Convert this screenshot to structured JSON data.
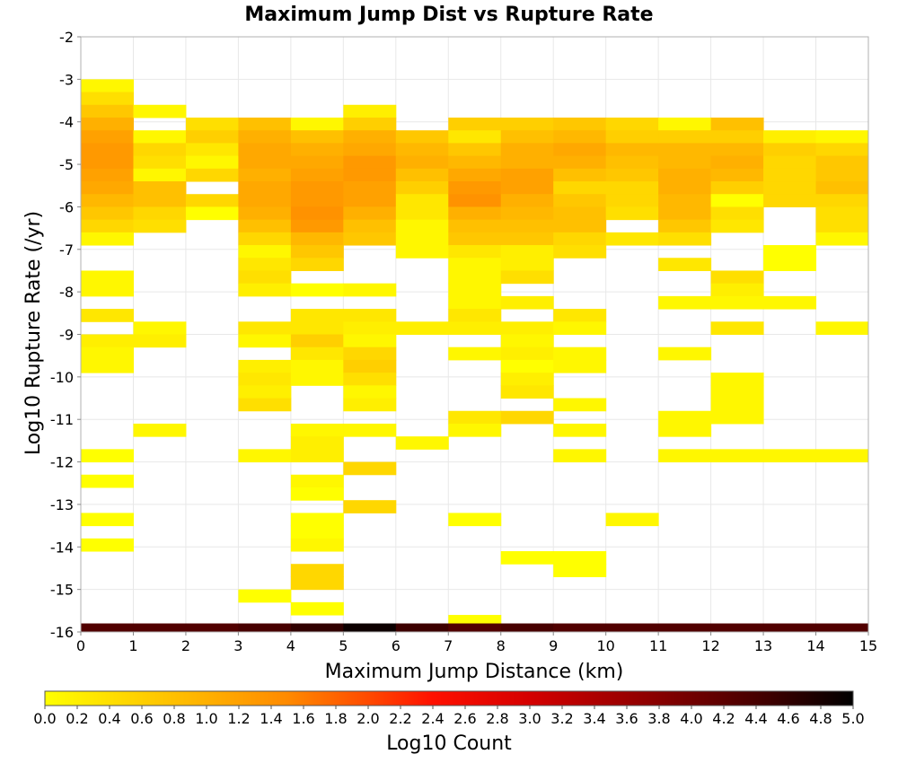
{
  "chart_data": {
    "type": "heatmap",
    "title": "Maximum Jump Dist vs Rupture Rate",
    "xlabel": "Maximum Jump Distance (km)",
    "ylabel": "Log10 Rupture Rate (/yr)",
    "xlim": [
      0,
      15
    ],
    "ylim": [
      -16,
      -2
    ],
    "x_ticks": [
      "0",
      "1",
      "2",
      "3",
      "4",
      "5",
      "6",
      "7",
      "8",
      "9",
      "10",
      "11",
      "12",
      "13",
      "14",
      "15"
    ],
    "y_ticks": [
      "-2",
      "-3",
      "-4",
      "-5",
      "-6",
      "-7",
      "-8",
      "-9",
      "-10",
      "-11",
      "-12",
      "-13",
      "-14",
      "-15",
      "-16"
    ],
    "bin_width_x": 1,
    "bin_height_y": 0.3,
    "grid": true,
    "colorbar": {
      "label": "Log10 Count",
      "min": 0.0,
      "max": 5.0,
      "ticks": [
        "0.0",
        "0.2",
        "0.4",
        "0.6",
        "0.8",
        "1.0",
        "1.2",
        "1.4",
        "1.6",
        "1.8",
        "2.0",
        "2.2",
        "2.4",
        "2.6",
        "2.8",
        "3.0",
        "3.2",
        "3.4",
        "3.6",
        "3.8",
        "4.0",
        "4.2",
        "4.4",
        "4.6",
        "4.8",
        "5.0"
      ],
      "placement": "bottom"
    },
    "cells": [
      [
        0,
        -3.15,
        0.1
      ],
      [
        0,
        -3.45,
        0.4
      ],
      [
        0,
        -3.75,
        0.7
      ],
      [
        0,
        -4.05,
        1.0
      ],
      [
        0,
        -4.35,
        1.2
      ],
      [
        0,
        -4.65,
        1.3
      ],
      [
        0,
        -4.95,
        1.3
      ],
      [
        0,
        -5.25,
        1.2
      ],
      [
        0,
        -5.55,
        1.1
      ],
      [
        0,
        -5.85,
        0.9
      ],
      [
        0,
        -6.15,
        0.7
      ],
      [
        0,
        -6.45,
        0.5
      ],
      [
        0,
        -6.75,
        0.1
      ],
      [
        0,
        -7.65,
        0.1
      ],
      [
        0,
        -7.95,
        0.1
      ],
      [
        0,
        -8.55,
        0.3
      ],
      [
        0,
        -9.15,
        0.2
      ],
      [
        0,
        -9.45,
        0.1
      ],
      [
        0,
        -9.75,
        0.1
      ],
      [
        0,
        -11.85,
        0.0
      ],
      [
        0,
        -12.45,
        0.0
      ],
      [
        0,
        -13.35,
        0.0
      ],
      [
        0,
        -13.95,
        0.0
      ],
      [
        1,
        -3.75,
        0.1
      ],
      [
        1,
        -4.35,
        0.1
      ],
      [
        1,
        -4.65,
        0.5
      ],
      [
        1,
        -4.95,
        0.4
      ],
      [
        1,
        -5.25,
        0.1
      ],
      [
        1,
        -5.55,
        0.8
      ],
      [
        1,
        -5.85,
        0.8
      ],
      [
        1,
        -6.15,
        0.5
      ],
      [
        1,
        -6.45,
        0.4
      ],
      [
        1,
        -8.85,
        0.1
      ],
      [
        1,
        -9.15,
        0.2
      ],
      [
        1,
        -11.25,
        0.1
      ],
      [
        2,
        -4.05,
        0.4
      ],
      [
        2,
        -4.35,
        0.6
      ],
      [
        2,
        -4.65,
        0.3
      ],
      [
        2,
        -4.95,
        0.1
      ],
      [
        2,
        -5.25,
        0.5
      ],
      [
        2,
        -5.85,
        0.5
      ],
      [
        2,
        -6.15,
        0.0
      ],
      [
        3,
        -4.05,
        0.8
      ],
      [
        3,
        -4.35,
        1.0
      ],
      [
        3,
        -4.65,
        1.1
      ],
      [
        3,
        -4.95,
        1.1
      ],
      [
        3,
        -5.25,
        1.0
      ],
      [
        3,
        -5.55,
        1.1
      ],
      [
        3,
        -5.85,
        1.1
      ],
      [
        3,
        -6.15,
        1.0
      ],
      [
        3,
        -6.45,
        0.8
      ],
      [
        3,
        -6.75,
        0.5
      ],
      [
        3,
        -7.05,
        0.1
      ],
      [
        3,
        -7.35,
        0.3
      ],
      [
        3,
        -7.65,
        0.4
      ],
      [
        3,
        -7.95,
        0.2
      ],
      [
        3,
        -8.85,
        0.3
      ],
      [
        3,
        -9.15,
        0.1
      ],
      [
        3,
        -9.75,
        0.2
      ],
      [
        3,
        -10.05,
        0.3
      ],
      [
        3,
        -10.35,
        0.2
      ],
      [
        3,
        -10.65,
        0.4
      ],
      [
        3,
        -11.85,
        0.1
      ],
      [
        3,
        -15.15,
        0.0
      ],
      [
        4,
        -4.05,
        0.1
      ],
      [
        4,
        -4.35,
        0.8
      ],
      [
        4,
        -4.65,
        1.0
      ],
      [
        4,
        -4.95,
        1.1
      ],
      [
        4,
        -5.25,
        1.2
      ],
      [
        4,
        -5.55,
        1.3
      ],
      [
        4,
        -5.85,
        1.3
      ],
      [
        4,
        -6.15,
        1.4
      ],
      [
        4,
        -6.45,
        1.3
      ],
      [
        4,
        -6.75,
        0.9
      ],
      [
        4,
        -7.05,
        0.7
      ],
      [
        4,
        -7.35,
        0.5
      ],
      [
        4,
        -7.95,
        0.0
      ],
      [
        4,
        -8.55,
        0.3
      ],
      [
        4,
        -8.85,
        0.3
      ],
      [
        4,
        -9.15,
        0.6
      ],
      [
        4,
        -9.45,
        0.3
      ],
      [
        4,
        -9.75,
        0.1
      ],
      [
        4,
        -10.05,
        0.1
      ],
      [
        4,
        -11.25,
        0.1
      ],
      [
        4,
        -11.55,
        0.2
      ],
      [
        4,
        -11.85,
        0.2
      ],
      [
        4,
        -12.45,
        0.1
      ],
      [
        4,
        -12.75,
        0.0
      ],
      [
        4,
        -13.35,
        0.0
      ],
      [
        4,
        -13.65,
        0.0
      ],
      [
        4,
        -13.95,
        0.1
      ],
      [
        4,
        -14.55,
        0.5
      ],
      [
        4,
        -14.85,
        0.5
      ],
      [
        4,
        -15.45,
        0.0
      ],
      [
        5,
        -3.75,
        0.2
      ],
      [
        5,
        -4.05,
        0.6
      ],
      [
        5,
        -4.35,
        1.0
      ],
      [
        5,
        -4.65,
        1.1
      ],
      [
        5,
        -4.95,
        1.3
      ],
      [
        5,
        -5.25,
        1.3
      ],
      [
        5,
        -5.55,
        1.2
      ],
      [
        5,
        -5.85,
        1.2
      ],
      [
        5,
        -6.15,
        1.0
      ],
      [
        5,
        -6.45,
        0.8
      ],
      [
        5,
        -6.75,
        0.7
      ],
      [
        5,
        -7.95,
        0.1
      ],
      [
        5,
        -8.55,
        0.3
      ],
      [
        5,
        -8.85,
        0.2
      ],
      [
        5,
        -9.15,
        0.1
      ],
      [
        5,
        -9.45,
        0.5
      ],
      [
        5,
        -9.75,
        0.6
      ],
      [
        5,
        -10.05,
        0.4
      ],
      [
        5,
        -10.35,
        0.1
      ],
      [
        5,
        -10.65,
        0.2
      ],
      [
        5,
        -11.25,
        0.1
      ],
      [
        5,
        -12.15,
        0.5
      ],
      [
        5,
        -13.05,
        0.5
      ],
      [
        6,
        -4.35,
        0.7
      ],
      [
        6,
        -4.65,
        0.9
      ],
      [
        6,
        -4.95,
        1.0
      ],
      [
        6,
        -5.25,
        0.8
      ],
      [
        6,
        -5.55,
        0.6
      ],
      [
        6,
        -5.85,
        0.3
      ],
      [
        6,
        -6.15,
        0.3
      ],
      [
        6,
        -6.45,
        0.1
      ],
      [
        6,
        -6.75,
        0.1
      ],
      [
        6,
        -7.05,
        0.1
      ],
      [
        6,
        -8.85,
        0.2
      ],
      [
        6,
        -11.55,
        0.1
      ],
      [
        7,
        -4.05,
        0.6
      ],
      [
        7,
        -4.35,
        0.3
      ],
      [
        7,
        -4.65,
        0.7
      ],
      [
        7,
        -4.95,
        0.9
      ],
      [
        7,
        -5.25,
        1.1
      ],
      [
        7,
        -5.55,
        1.3
      ],
      [
        7,
        -5.85,
        1.4
      ],
      [
        7,
        -6.15,
        1.0
      ],
      [
        7,
        -6.45,
        0.8
      ],
      [
        7,
        -6.75,
        0.7
      ],
      [
        7,
        -7.05,
        0.3
      ],
      [
        7,
        -7.35,
        0.1
      ],
      [
        7,
        -7.65,
        0.1
      ],
      [
        7,
        -7.95,
        0.1
      ],
      [
        7,
        -8.25,
        0.1
      ],
      [
        7,
        -8.55,
        0.3
      ],
      [
        7,
        -8.85,
        0.2
      ],
      [
        7,
        -9.45,
        0.1
      ],
      [
        7,
        -10.95,
        0.3
      ],
      [
        7,
        -11.25,
        0.1
      ],
      [
        7,
        -13.35,
        0.0
      ],
      [
        7,
        -15.75,
        0.0
      ],
      [
        8,
        -4.05,
        0.6
      ],
      [
        8,
        -4.35,
        0.8
      ],
      [
        8,
        -4.65,
        1.0
      ],
      [
        8,
        -4.95,
        1.0
      ],
      [
        8,
        -5.25,
        1.2
      ],
      [
        8,
        -5.55,
        1.2
      ],
      [
        8,
        -5.85,
        1.0
      ],
      [
        8,
        -6.15,
        0.9
      ],
      [
        8,
        -6.45,
        0.8
      ],
      [
        8,
        -6.75,
        0.7
      ],
      [
        8,
        -7.05,
        0.2
      ],
      [
        8,
        -7.35,
        0.2
      ],
      [
        8,
        -7.65,
        0.4
      ],
      [
        8,
        -8.25,
        0.2
      ],
      [
        8,
        -8.85,
        0.2
      ],
      [
        8,
        -9.15,
        0.1
      ],
      [
        8,
        -9.45,
        0.2
      ],
      [
        8,
        -9.75,
        0.0
      ],
      [
        8,
        -10.05,
        0.2
      ],
      [
        8,
        -10.35,
        0.3
      ],
      [
        8,
        -10.95,
        0.5
      ],
      [
        8,
        -14.25,
        0.0
      ],
      [
        9,
        -4.05,
        0.7
      ],
      [
        9,
        -4.35,
        0.9
      ],
      [
        9,
        -4.65,
        1.1
      ],
      [
        9,
        -4.95,
        1.0
      ],
      [
        9,
        -5.25,
        0.8
      ],
      [
        9,
        -5.55,
        0.5
      ],
      [
        9,
        -5.85,
        0.7
      ],
      [
        9,
        -6.15,
        0.8
      ],
      [
        9,
        -6.45,
        0.8
      ],
      [
        9,
        -6.75,
        0.5
      ],
      [
        9,
        -7.05,
        0.4
      ],
      [
        9,
        -8.55,
        0.3
      ],
      [
        9,
        -8.85,
        0.1
      ],
      [
        9,
        -9.45,
        0.1
      ],
      [
        9,
        -9.75,
        0.1
      ],
      [
        9,
        -10.65,
        0.1
      ],
      [
        9,
        -11.25,
        0.1
      ],
      [
        9,
        -11.85,
        0.1
      ],
      [
        9,
        -14.25,
        0.0
      ],
      [
        9,
        -14.55,
        0.0
      ],
      [
        10,
        -4.05,
        0.5
      ],
      [
        10,
        -4.35,
        0.6
      ],
      [
        10,
        -4.65,
        0.9
      ],
      [
        10,
        -4.95,
        0.8
      ],
      [
        10,
        -5.25,
        0.7
      ],
      [
        10,
        -5.55,
        0.5
      ],
      [
        10,
        -5.85,
        0.5
      ],
      [
        10,
        -6.15,
        0.4
      ],
      [
        10,
        -6.75,
        0.3
      ],
      [
        10,
        -13.35,
        0.1
      ],
      [
        11,
        -4.05,
        0.1
      ],
      [
        11,
        -4.35,
        0.6
      ],
      [
        11,
        -4.65,
        0.9
      ],
      [
        11,
        -4.95,
        0.9
      ],
      [
        11,
        -5.25,
        1.0
      ],
      [
        11,
        -5.55,
        1.0
      ],
      [
        11,
        -5.85,
        0.9
      ],
      [
        11,
        -6.15,
        0.9
      ],
      [
        11,
        -6.45,
        0.7
      ],
      [
        11,
        -6.75,
        0.4
      ],
      [
        11,
        -7.35,
        0.3
      ],
      [
        11,
        -8.25,
        0.1
      ],
      [
        11,
        -9.45,
        0.1
      ],
      [
        11,
        -10.95,
        0.1
      ],
      [
        11,
        -11.25,
        0.1
      ],
      [
        11,
        -11.85,
        0.1
      ],
      [
        12,
        -4.05,
        0.8
      ],
      [
        12,
        -4.35,
        0.6
      ],
      [
        12,
        -4.65,
        0.9
      ],
      [
        12,
        -4.95,
        1.0
      ],
      [
        12,
        -5.25,
        0.9
      ],
      [
        12,
        -5.55,
        0.6
      ],
      [
        12,
        -5.85,
        0.0
      ],
      [
        12,
        -6.15,
        0.4
      ],
      [
        12,
        -6.45,
        0.3
      ],
      [
        12,
        -7.65,
        0.4
      ],
      [
        12,
        -7.95,
        0.2
      ],
      [
        12,
        -8.25,
        0.1
      ],
      [
        12,
        -8.85,
        0.3
      ],
      [
        12,
        -10.05,
        0.1
      ],
      [
        12,
        -10.35,
        0.1
      ],
      [
        12,
        -10.65,
        0.1
      ],
      [
        12,
        -10.95,
        0.1
      ],
      [
        12,
        -11.85,
        0.1
      ],
      [
        13,
        -4.35,
        0.2
      ],
      [
        13,
        -4.65,
        0.6
      ],
      [
        13,
        -4.95,
        0.5
      ],
      [
        13,
        -5.25,
        0.5
      ],
      [
        13,
        -5.55,
        0.5
      ],
      [
        13,
        -5.85,
        0.5
      ],
      [
        13,
        -7.05,
        0.0
      ],
      [
        13,
        -7.35,
        0.0
      ],
      [
        13,
        -8.25,
        0.1
      ],
      [
        13,
        -11.85,
        0.1
      ],
      [
        14,
        -4.35,
        0.1
      ],
      [
        14,
        -4.65,
        0.5
      ],
      [
        14,
        -4.95,
        0.7
      ],
      [
        14,
        -5.25,
        0.7
      ],
      [
        14,
        -5.55,
        0.8
      ],
      [
        14,
        -5.85,
        0.5
      ],
      [
        14,
        -6.15,
        0.4
      ],
      [
        14,
        -6.45,
        0.4
      ],
      [
        14,
        -6.75,
        0.1
      ],
      [
        14,
        -8.85,
        0.1
      ],
      [
        14,
        -11.85,
        0.1
      ]
    ],
    "bottom_row": [
      [
        0,
        -15.9,
        4.3
      ],
      [
        1,
        -15.9,
        4.3
      ],
      [
        2,
        -15.9,
        4.3
      ],
      [
        3,
        -15.9,
        4.4
      ],
      [
        4,
        -15.9,
        4.6
      ],
      [
        5,
        -15.9,
        4.9
      ],
      [
        6,
        -15.9,
        4.5
      ],
      [
        7,
        -15.9,
        4.3
      ],
      [
        8,
        -15.9,
        4.4
      ],
      [
        9,
        -15.9,
        4.3
      ],
      [
        10,
        -15.9,
        4.3
      ],
      [
        11,
        -15.9,
        4.3
      ],
      [
        12,
        -15.9,
        4.3
      ],
      [
        13,
        -15.9,
        4.3
      ],
      [
        14,
        -15.9,
        4.3
      ]
    ]
  }
}
